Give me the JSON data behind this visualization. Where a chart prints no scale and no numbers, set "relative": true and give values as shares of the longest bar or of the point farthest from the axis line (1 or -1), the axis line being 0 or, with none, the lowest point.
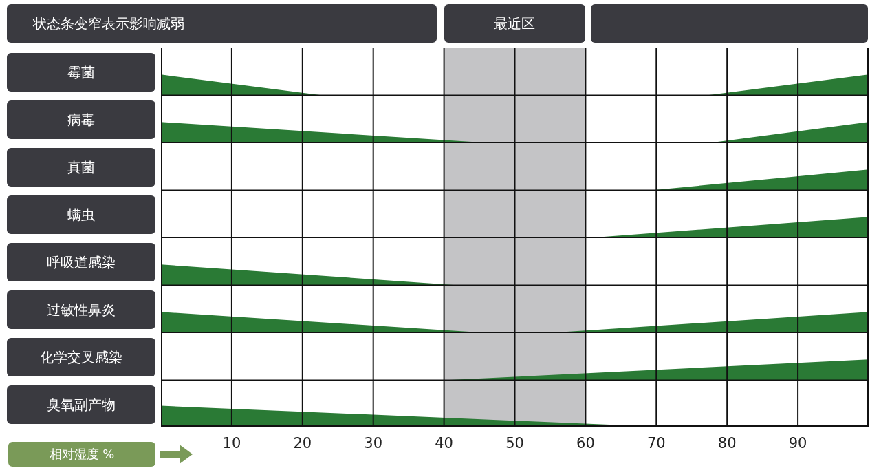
{
  "chart_data": [
    {
      "type": "area",
      "title": "状态条变窄表示影响减弱",
      "ylabel": "霉菌",
      "relative": true,
      "xlim": [
        0,
        100
      ],
      "xticks": [
        10,
        20,
        30,
        40,
        50,
        60,
        70,
        80,
        90
      ],
      "grid": "x",
      "tick_labels": false,
      "marker": "none",
      "bands": [
        {
          "axis": "x",
          "from": 40,
          "to": 60,
          "label": "最近区",
          "color": "#c4c4c6"
        }
      ],
      "series": [
        {
          "color": "#2a7a35",
          "x": [
            0,
            23.2
          ],
          "values": [
            1,
            0
          ]
        },
        {
          "color": "#2a7a35",
          "x": [
            76.7,
            100
          ],
          "values": [
            0,
            1
          ]
        }
      ]
    },
    {
      "type": "area",
      "ylabel": "病毒",
      "relative": true,
      "xlim": [
        0,
        100
      ],
      "xticks": [
        10,
        20,
        30,
        40,
        50,
        60,
        70,
        80,
        90
      ],
      "grid": "x",
      "tick_labels": false,
      "marker": "none",
      "bands": [
        {
          "axis": "x",
          "from": 40,
          "to": 60,
          "color": "#c4c4c6"
        }
      ],
      "series": [
        {
          "color": "#2a7a35",
          "x": [
            0,
            47
          ],
          "values": [
            1,
            0
          ]
        },
        {
          "color": "#2a7a35",
          "x": [
            77.2,
            100
          ],
          "values": [
            0,
            1
          ]
        }
      ]
    },
    {
      "type": "area",
      "ylabel": "真菌",
      "relative": true,
      "xlim": [
        0,
        100
      ],
      "xticks": [
        10,
        20,
        30,
        40,
        50,
        60,
        70,
        80,
        90
      ],
      "grid": "x",
      "tick_labels": false,
      "marker": "none",
      "bands": [
        {
          "axis": "x",
          "from": 40,
          "to": 60,
          "color": "#c4c4c6"
        }
      ],
      "series": [
        {
          "color": "#2a7a35",
          "x": [
            68.7,
            100
          ],
          "values": [
            0,
            1
          ]
        }
      ]
    },
    {
      "type": "area",
      "ylabel": "螨虫",
      "relative": true,
      "xlim": [
        0,
        100
      ],
      "xticks": [
        10,
        20,
        30,
        40,
        50,
        60,
        70,
        80,
        90
      ],
      "grid": "x",
      "tick_labels": false,
      "marker": "none",
      "bands": [
        {
          "axis": "x",
          "from": 40,
          "to": 60,
          "color": "#c4c4c6"
        }
      ],
      "series": [
        {
          "color": "#2a7a35",
          "x": [
            60,
            100
          ],
          "values": [
            0,
            1
          ]
        }
      ]
    },
    {
      "type": "area",
      "ylabel": "呼吸道感染",
      "relative": true,
      "xlim": [
        0,
        100
      ],
      "xticks": [
        10,
        20,
        30,
        40,
        50,
        60,
        70,
        80,
        90
      ],
      "grid": "x",
      "tick_labels": false,
      "marker": "none",
      "bands": [
        {
          "axis": "x",
          "from": 40,
          "to": 60,
          "color": "#c4c4c6"
        }
      ],
      "series": [
        {
          "color": "#2a7a35",
          "x": [
            0,
            42.7
          ],
          "values": [
            1,
            0
          ]
        }
      ]
    },
    {
      "type": "area",
      "ylabel": "过敏性鼻炎",
      "relative": true,
      "xlim": [
        0,
        100
      ],
      "xticks": [
        10,
        20,
        30,
        40,
        50,
        60,
        70,
        80,
        90
      ],
      "grid": "x",
      "tick_labels": false,
      "marker": "none",
      "bands": [
        {
          "axis": "x",
          "from": 40,
          "to": 60,
          "color": "#c4c4c6"
        }
      ],
      "series": [
        {
          "color": "#2a7a35",
          "x": [
            0,
            46.6
          ],
          "values": [
            1,
            0
          ]
        },
        {
          "color": "#2a7a35",
          "x": [
            54.4,
            100
          ],
          "values": [
            0,
            1
          ]
        }
      ]
    },
    {
      "type": "area",
      "ylabel": "化学交叉感染",
      "relative": true,
      "xlim": [
        0,
        100
      ],
      "xticks": [
        10,
        20,
        30,
        40,
        50,
        60,
        70,
        80,
        90
      ],
      "grid": "x",
      "tick_labels": false,
      "marker": "none",
      "bands": [
        {
          "axis": "x",
          "from": 40,
          "to": 60,
          "color": "#c4c4c6"
        }
      ],
      "series": [
        {
          "color": "#2a7a35",
          "x": [
            38.8,
            100
          ],
          "values": [
            0,
            1
          ]
        }
      ]
    },
    {
      "type": "area",
      "ylabel": "臭氧副产物",
      "xlabel": "相对湿度 %",
      "relative": true,
      "xlim": [
        0,
        100
      ],
      "xticks": [
        10,
        20,
        30,
        40,
        50,
        60,
        70,
        80,
        90
      ],
      "grid": "x",
      "tick_labels": "x",
      "marker": "none",
      "bands": [
        {
          "axis": "x",
          "from": 40,
          "to": 60,
          "color": "#c4c4c6"
        }
      ],
      "series": [
        {
          "color": "#2a7a35",
          "x": [
            0,
            67.4
          ],
          "values": [
            1,
            0
          ]
        }
      ]
    }
  ]
}
